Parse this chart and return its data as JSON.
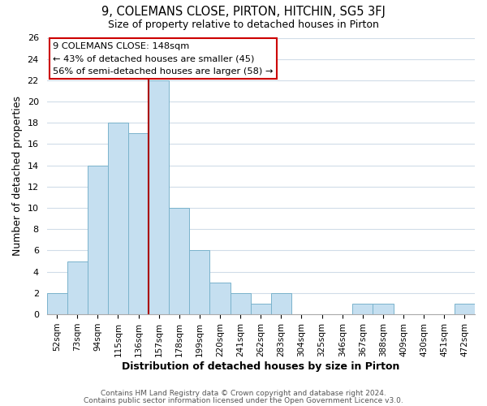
{
  "title": "9, COLEMANS CLOSE, PIRTON, HITCHIN, SG5 3FJ",
  "subtitle": "Size of property relative to detached houses in Pirton",
  "xlabel": "Distribution of detached houses by size in Pirton",
  "ylabel": "Number of detached properties",
  "footnote1": "Contains HM Land Registry data © Crown copyright and database right 2024.",
  "footnote2": "Contains public sector information licensed under the Open Government Licence v3.0.",
  "bin_labels": [
    "52sqm",
    "73sqm",
    "94sqm",
    "115sqm",
    "136sqm",
    "157sqm",
    "178sqm",
    "199sqm",
    "220sqm",
    "241sqm",
    "262sqm",
    "283sqm",
    "304sqm",
    "325sqm",
    "346sqm",
    "367sqm",
    "388sqm",
    "409sqm",
    "430sqm",
    "451sqm",
    "472sqm"
  ],
  "bar_heights": [
    2,
    5,
    14,
    18,
    17,
    22,
    10,
    6,
    3,
    2,
    1,
    2,
    0,
    0,
    0,
    1,
    1,
    0,
    0,
    0,
    1
  ],
  "bar_color": "#c5dff0",
  "bar_edgecolor": "#7ab3cc",
  "vline_x_idx": 5,
  "vline_color": "#aa0000",
  "ylim": [
    0,
    26
  ],
  "yticks": [
    0,
    2,
    4,
    6,
    8,
    10,
    12,
    14,
    16,
    18,
    20,
    22,
    24,
    26
  ],
  "annotation_title": "9 COLEMANS CLOSE: 148sqm",
  "annotation_line1": "← 43% of detached houses are smaller (45)",
  "annotation_line2": "56% of semi-detached houses are larger (58) →",
  "annotation_box_color": "#ffffff",
  "annotation_box_edgecolor": "#cc0000",
  "bg_color": "#ffffff",
  "grid_color": "#d0dce8"
}
